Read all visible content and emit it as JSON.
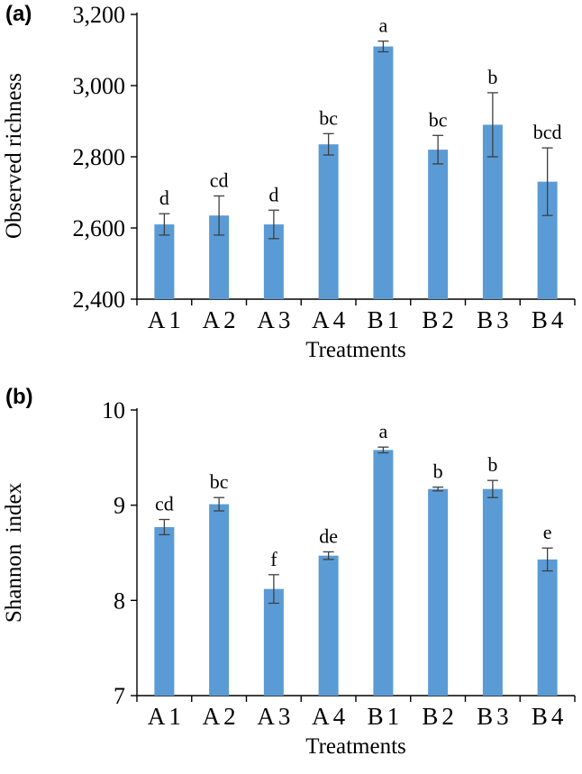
{
  "colors": {
    "bar": "#5B9BD5",
    "axis": "#000000",
    "error": "#3f3f3f"
  },
  "chart_data": [
    {
      "type": "bar",
      "panel_label": "(a)",
      "title": "",
      "ylabel": "Observed richness",
      "xlabel": "Treatments",
      "categories": [
        "A1",
        "A2",
        "A3",
        "A4",
        "B1",
        "B2",
        "B3",
        "B4"
      ],
      "values": [
        2610,
        2635,
        2610,
        2835,
        3110,
        2820,
        2890,
        2730
      ],
      "errors": [
        30,
        55,
        40,
        30,
        15,
        40,
        90,
        95
      ],
      "sig_letters": [
        "d",
        "cd",
        "d",
        "bc",
        "a",
        "bc",
        "b",
        "bcd"
      ],
      "ylim": [
        2400,
        3200
      ],
      "yticks": [
        2400,
        2600,
        2800,
        3000,
        3200
      ],
      "ytick_labels": [
        "2,400",
        "2,600",
        "2,800",
        "3,000",
        "3,200"
      ],
      "grid": false,
      "legend": "none"
    },
    {
      "type": "bar",
      "panel_label": "(b)",
      "title": "",
      "ylabel": "Shannon index",
      "xlabel": "Treatments",
      "categories": [
        "A1",
        "A2",
        "A3",
        "A4",
        "B1",
        "B2",
        "B3",
        "B4"
      ],
      "values": [
        8.77,
        9.01,
        8.12,
        8.47,
        9.58,
        9.17,
        9.17,
        8.43
      ],
      "errors": [
        0.08,
        0.07,
        0.15,
        0.04,
        0.03,
        0.02,
        0.09,
        0.12
      ],
      "sig_letters": [
        "cd",
        "bc",
        "f",
        "de",
        "a",
        "b",
        "b",
        "e"
      ],
      "ylim": [
        7,
        10
      ],
      "yticks": [
        7,
        8,
        9,
        10
      ],
      "ytick_labels": [
        "7",
        "8",
        "9",
        "10"
      ],
      "grid": false,
      "legend": "none"
    }
  ]
}
